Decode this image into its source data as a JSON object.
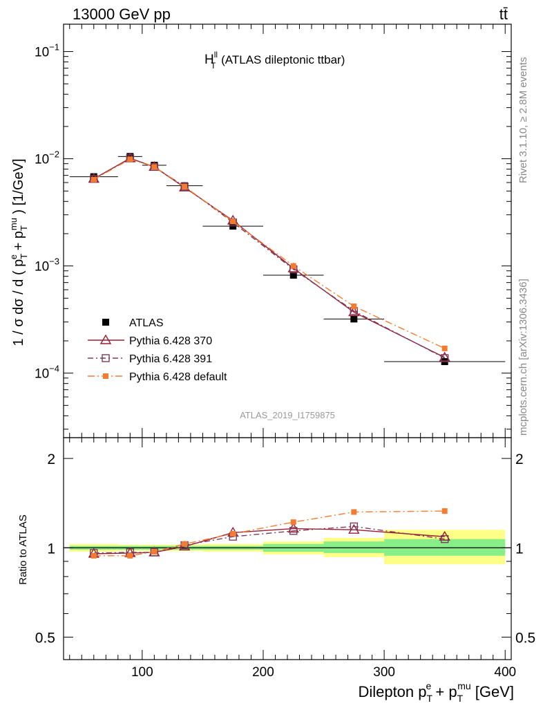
{
  "header": {
    "left": "13000 GeV pp",
    "right": "tt̄"
  },
  "side_labels": {
    "rivet": "Rivet 3.1.10, ≥ 2.8M events",
    "mcplots": "mcplots.cern.ch [arXiv:1306.3436]"
  },
  "chart_data": [
    {
      "type": "scatter",
      "panel": "main",
      "title": "H_T^ll (ATLAS dileptonic ttbar)",
      "title_main": "H",
      "title_sup": "ll",
      "title_sub": "T",
      "title_rest": " (ATLAS dileptonic ttbar)",
      "analysis_label": "ATLAS_2019_I1759875",
      "ylabel": "1 / σ dσ / d ( p_T^e + p_T^mu ) [1/GeV]",
      "yscale": "log",
      "ylim": [
        2.5e-05,
        0.18
      ],
      "xlim": [
        35,
        405
      ],
      "y_tick_labels": [
        "10^-4",
        "10^-3",
        "10^-2",
        "10^-1"
      ],
      "legend_position": "center-left",
      "x": [
        60,
        90,
        110,
        135,
        175,
        225,
        275,
        350
      ],
      "x_errors": [
        [
          40,
          80
        ],
        [
          80,
          100
        ],
        [
          100,
          120
        ],
        [
          120,
          150
        ],
        [
          150,
          200
        ],
        [
          200,
          250
        ],
        [
          250,
          300
        ],
        [
          300,
          400
        ]
      ],
      "series": [
        {
          "name": "ATLAS",
          "marker": "filled-square",
          "color": "#000000",
          "dash": "",
          "connect": false,
          "values": [
            0.0068,
            0.0105,
            0.0087,
            0.0056,
            0.00235,
            0.00082,
            0.00032,
            0.000128
          ]
        },
        {
          "name": "Pythia 6.428 370",
          "marker": "open-triangle",
          "color": "#9b1b30",
          "dash": "",
          "connect": true,
          "values": [
            0.0065,
            0.0101,
            0.0084,
            0.0054,
            0.00265,
            0.00095,
            0.00037,
            0.00014
          ]
        },
        {
          "name": "Pythia 6.428 391",
          "marker": "open-square",
          "color": "#7a3b5a",
          "dash": "8,4,2,4",
          "connect": true,
          "values": [
            0.0065,
            0.0101,
            0.0084,
            0.0055,
            0.00255,
            0.00093,
            0.00038,
            0.000138
          ]
        },
        {
          "name": "Pythia 6.428 default",
          "marker": "filled-small-square",
          "color": "#f47c30",
          "dash": "10,4,2,4",
          "connect": true,
          "values": [
            0.0064,
            0.0099,
            0.0084,
            0.0055,
            0.0026,
            0.001,
            0.00042,
            0.00017
          ]
        }
      ]
    },
    {
      "type": "scatter",
      "panel": "ratio",
      "ylabel": "Ratio to ATLAS",
      "xlabel": "Dilepton p_T^e + p_T^mu [GeV]",
      "xlabel_parts": {
        "a": "Dilepton p",
        "a_sub": "T",
        "a_sup": "e",
        "b": " + p",
        "b_sub": "T",
        "b_sup": "mu",
        "c": " [GeV]"
      },
      "yscale": "log",
      "ylim": [
        0.42,
        2.35
      ],
      "xlim": [
        35,
        405
      ],
      "x_ticks": [
        100,
        200,
        300,
        400
      ],
      "y_ticks": [
        0.5,
        1,
        2
      ],
      "y_tick_labels": [
        "0.5",
        "1",
        "2"
      ],
      "x": [
        60,
        90,
        110,
        135,
        175,
        225,
        275,
        350
      ],
      "bands": [
        {
          "x": [
            40,
            80
          ],
          "stat": [
            0.985,
            1.015
          ],
          "total": [
            0.97,
            1.03
          ]
        },
        {
          "x": [
            80,
            100
          ],
          "stat": [
            0.985,
            1.015
          ],
          "total": [
            0.975,
            1.025
          ]
        },
        {
          "x": [
            100,
            120
          ],
          "stat": [
            0.985,
            1.015
          ],
          "total": [
            0.975,
            1.025
          ]
        },
        {
          "x": [
            120,
            150
          ],
          "stat": [
            0.985,
            1.015
          ],
          "total": [
            0.975,
            1.025
          ]
        },
        {
          "x": [
            150,
            200
          ],
          "stat": [
            0.985,
            1.015
          ],
          "total": [
            0.97,
            1.03
          ]
        },
        {
          "x": [
            200,
            250
          ],
          "stat": [
            0.97,
            1.03
          ],
          "total": [
            0.95,
            1.05
          ]
        },
        {
          "x": [
            250,
            300
          ],
          "stat": [
            0.96,
            1.05
          ],
          "total": [
            0.93,
            1.08
          ]
        },
        {
          "x": [
            300,
            400
          ],
          "stat": [
            0.94,
            1.07
          ],
          "total": [
            0.88,
            1.15
          ]
        }
      ],
      "series": [
        {
          "name": "Pythia 6.428 370",
          "color": "#9b1b30",
          "dash": "",
          "marker": "open-triangle",
          "values": [
            0.955,
            0.96,
            0.965,
            1.01,
            1.125,
            1.16,
            1.15,
            1.09
          ]
        },
        {
          "name": "Pythia 6.428 391",
          "color": "#7a3b5a",
          "dash": "8,4,2,4",
          "marker": "open-square",
          "values": [
            0.96,
            0.965,
            0.965,
            1.02,
            1.09,
            1.14,
            1.18,
            1.07
          ]
        },
        {
          "name": "Pythia 6.428 default",
          "color": "#f47c30",
          "dash": "10,4,2,4",
          "marker": "filled-small-square",
          "values": [
            0.94,
            0.94,
            0.97,
            1.03,
            1.115,
            1.22,
            1.32,
            1.33
          ],
          "errors": [
            0.01,
            0.01,
            0.01,
            0.012,
            0.015,
            0.02,
            0.025,
            0.03
          ]
        }
      ]
    }
  ]
}
